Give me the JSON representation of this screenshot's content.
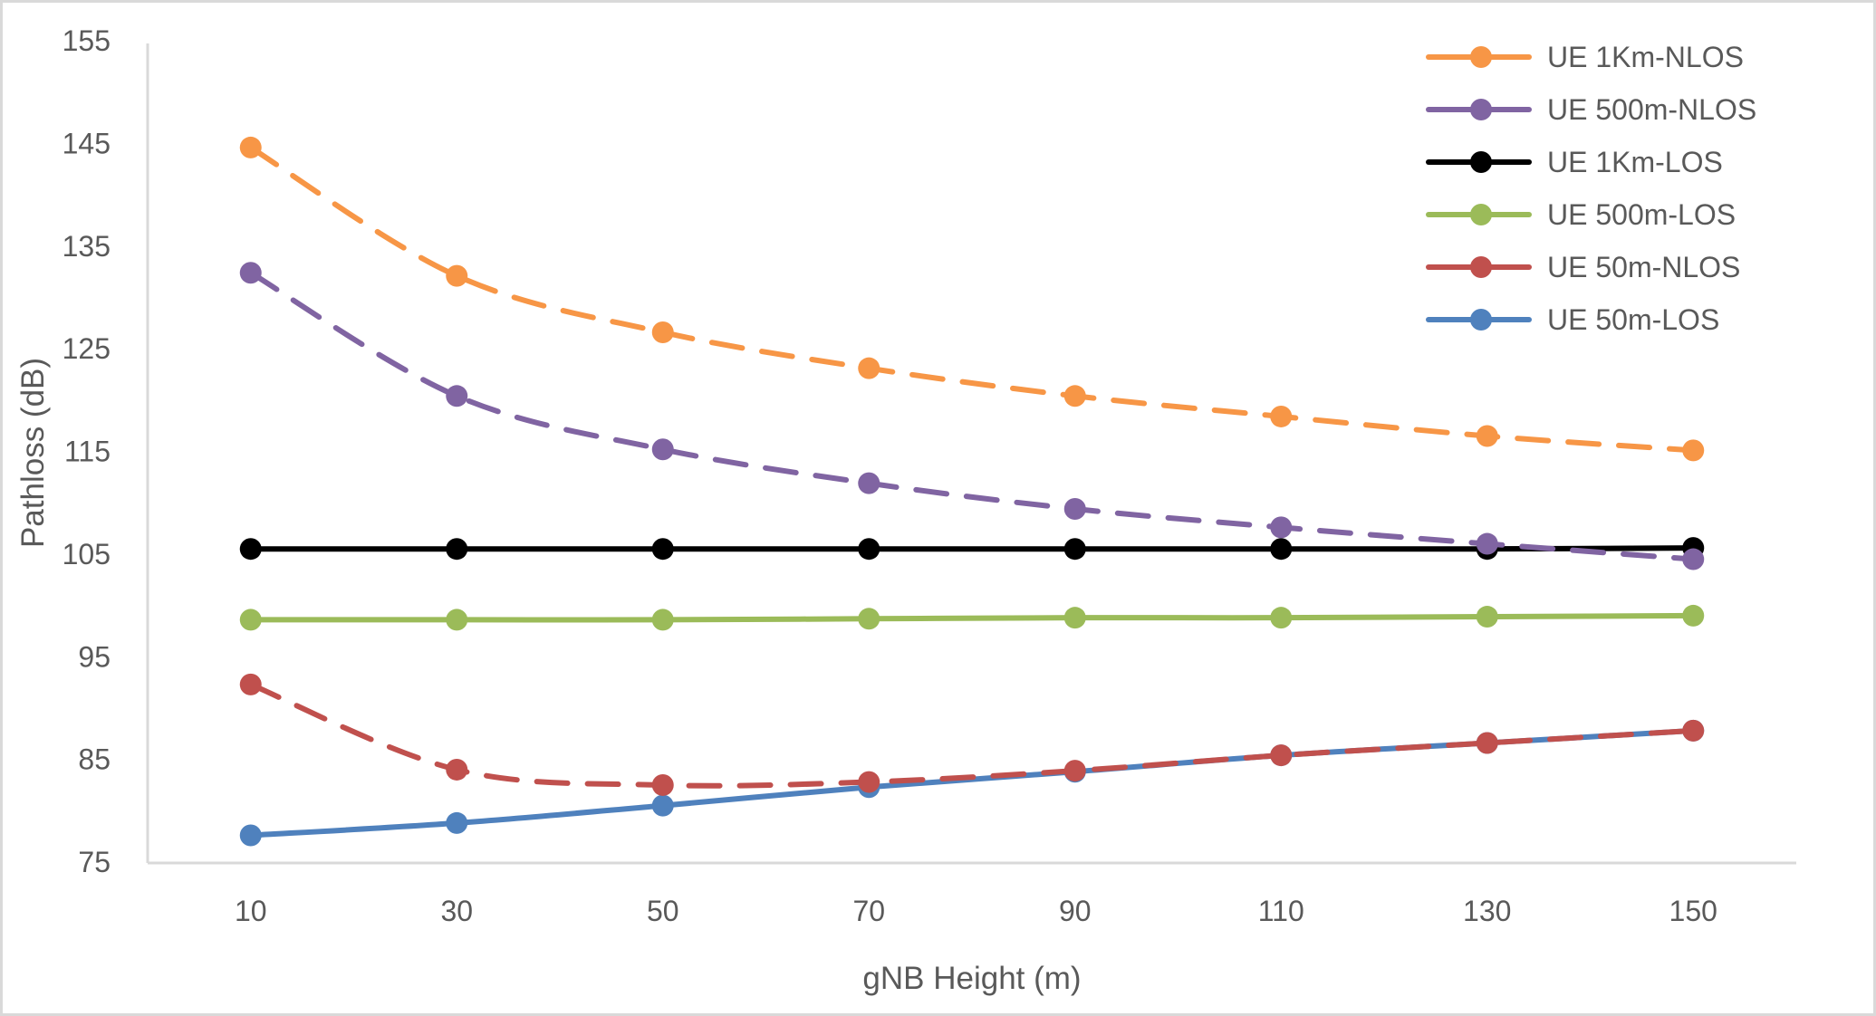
{
  "chart_data": {
    "type": "line",
    "title": "",
    "xlabel": "gNB Height (m)",
    "ylabel": "Pathloss (dB)",
    "categories": [
      "10",
      "30",
      "50",
      "70",
      "90",
      "110",
      "130",
      "150"
    ],
    "ylim": [
      75,
      155
    ],
    "yticks": [
      75,
      85,
      95,
      105,
      115,
      125,
      135,
      145,
      155
    ],
    "grid": false,
    "legend_position": "top-right",
    "series": [
      {
        "name": "UE 1Km-NLOS",
        "color": "#F79646",
        "dashed": true,
        "values": [
          144.6,
          132.1,
          126.6,
          123.1,
          120.4,
          118.4,
          116.5,
          115.1
        ]
      },
      {
        "name": "UE 500m-NLOS",
        "color": "#8064A2",
        "dashed": true,
        "values": [
          132.4,
          120.4,
          115.2,
          111.9,
          109.4,
          107.6,
          106.0,
          104.5
        ]
      },
      {
        "name": "UE 1Km-LOS",
        "color": "#000000",
        "dashed": false,
        "values": [
          105.5,
          105.5,
          105.5,
          105.5,
          105.5,
          105.5,
          105.5,
          105.6
        ]
      },
      {
        "name": "UE 500m-LOS",
        "color": "#9BBB59",
        "dashed": false,
        "values": [
          98.6,
          98.6,
          98.6,
          98.7,
          98.8,
          98.8,
          98.9,
          99.0
        ]
      },
      {
        "name": "UE 50m-NLOS",
        "color": "#C0504D",
        "dashed": true,
        "values": [
          92.3,
          84.0,
          82.5,
          82.8,
          83.9,
          85.4,
          86.6,
          87.8
        ]
      },
      {
        "name": "UE 50m-LOS",
        "color": "#4F81BD",
        "dashed": false,
        "values": [
          77.6,
          78.8,
          80.5,
          82.3,
          83.8,
          85.4,
          86.6,
          87.8
        ]
      }
    ]
  },
  "colors": {
    "axis": "#d9d9d9",
    "text": "#595959"
  }
}
